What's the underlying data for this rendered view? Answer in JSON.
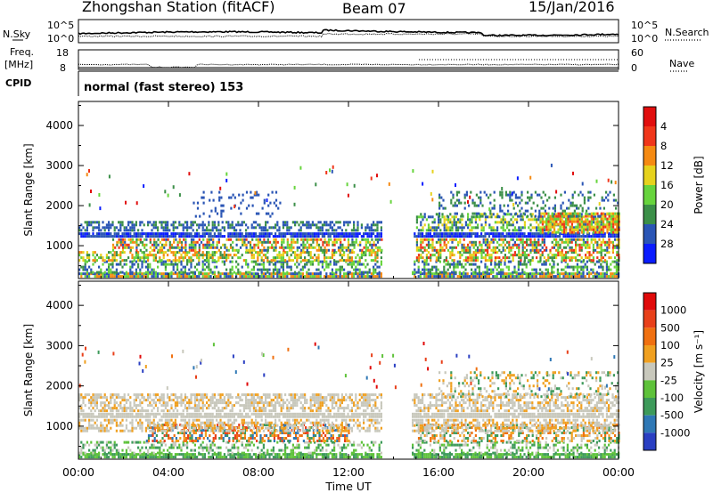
{
  "header": {
    "station": "Zhongshan Station (fitACF)",
    "beam": "Beam 07",
    "date": "15/Jan/2016",
    "mode": "normal (fast stereo) 153"
  },
  "left_labels": {
    "nsky": "N.Sky",
    "freq_top": "Freq.",
    "freq_unit": "[MHz]",
    "cpid": "CPID"
  },
  "right_labels": {
    "nsearch": "N.Search",
    "nave": "Nave"
  },
  "noise_axis": {
    "ticks_left": [
      "10^5",
      "10^0"
    ],
    "ticks_right": [
      "10^5",
      "10^0"
    ]
  },
  "freq_axis": {
    "ticks_left": [
      "18",
      "8"
    ],
    "ticks_right": [
      "60",
      "0"
    ]
  },
  "chart_data": [
    {
      "type": "heatmap",
      "panel": "power",
      "ylabel": "Slant Range [km]",
      "xlabel": "",
      "x_ticks": [
        "00:00",
        "04:00",
        "08:00",
        "12:00",
        "16:00",
        "20:00",
        "00:00"
      ],
      "y_ticks": [
        1000,
        2000,
        3000,
        4000
      ],
      "ylim": [
        180,
        4600
      ],
      "xlim_hours": [
        0,
        24
      ],
      "colorbar": {
        "label": "Power [dB]",
        "ticks": [
          "4",
          "8",
          "12",
          "16",
          "20",
          "24",
          "28"
        ],
        "colors": [
          "#0a1cff",
          "#2a55b5",
          "#3b8f48",
          "#67d43d",
          "#e6d21d",
          "#f58a12",
          "#f0361a",
          "#e10e0e"
        ]
      },
      "bands": [
        {
          "r": [
            200,
            300
          ],
          "t": [
            0,
            24
          ],
          "d": 0.9,
          "c": [
            1,
            3,
            5
          ]
        },
        {
          "r": [
            300,
            600
          ],
          "t": [
            0,
            24
          ],
          "d": 0.45,
          "c": [
            1,
            2,
            3
          ]
        },
        {
          "r": [
            600,
            850
          ],
          "t": [
            0,
            14
          ],
          "d": 0.55,
          "c": [
            2,
            3,
            4,
            5
          ]
        },
        {
          "r": [
            600,
            850
          ],
          "t": [
            15,
            24
          ],
          "d": 0.55,
          "c": [
            2,
            3,
            4,
            5,
            6
          ]
        },
        {
          "r": [
            850,
            1150
          ],
          "t": [
            1.5,
            14
          ],
          "d": 0.6,
          "c": [
            1,
            2,
            3,
            4,
            5,
            6
          ]
        },
        {
          "r": [
            850,
            1150
          ],
          "t": [
            15,
            24
          ],
          "d": 0.6,
          "c": [
            1,
            2,
            3,
            4,
            5,
            6
          ]
        },
        {
          "r": [
            1200,
            1300
          ],
          "t": [
            0,
            24
          ],
          "d": 0.9,
          "c": [
            0,
            1
          ]
        },
        {
          "r": [
            1350,
            1600
          ],
          "t": [
            0,
            14
          ],
          "d": 0.55,
          "c": [
            1,
            1,
            2
          ]
        },
        {
          "r": [
            1350,
            1750
          ],
          "t": [
            15,
            24
          ],
          "d": 0.55,
          "c": [
            1,
            2,
            3,
            4
          ]
        },
        {
          "r": [
            1300,
            1800
          ],
          "t": [
            20.5,
            24
          ],
          "d": 0.75,
          "c": [
            3,
            4,
            5,
            6
          ]
        },
        {
          "r": [
            1700,
            2300
          ],
          "t": [
            16,
            24
          ],
          "d": 0.22,
          "c": [
            1,
            2
          ]
        },
        {
          "r": [
            1700,
            2300
          ],
          "t": [
            5,
            9
          ],
          "d": 0.15,
          "c": [
            1
          ]
        }
      ]
    },
    {
      "type": "heatmap",
      "panel": "velocity",
      "ylabel": "Slant Range [km]",
      "xlabel": "Time UT",
      "x_ticks": [
        "00:00",
        "04:00",
        "08:00",
        "12:00",
        "16:00",
        "20:00",
        "00:00"
      ],
      "y_ticks": [
        1000,
        2000,
        3000,
        4000
      ],
      "ylim": [
        180,
        4600
      ],
      "xlim_hours": [
        0,
        24
      ],
      "colorbar": {
        "label": "Velocity [m s⁻¹]",
        "ticks": [
          "1000",
          "500",
          "100",
          "25",
          "-25",
          "-100",
          "-500",
          "-1000"
        ],
        "colors": [
          "#2a3fc2",
          "#2f78b5",
          "#3d9a5a",
          "#5ec23a",
          "#c8c8bc",
          "#f0a020",
          "#f07010",
          "#e8401a",
          "#e00a0a"
        ]
      },
      "bands": [
        {
          "r": [
            200,
            300
          ],
          "t": [
            0,
            24
          ],
          "d": 0.85,
          "c": [
            2,
            3
          ]
        },
        {
          "r": [
            300,
            600
          ],
          "t": [
            0,
            24
          ],
          "d": 0.4,
          "c": [
            2,
            3,
            4
          ]
        },
        {
          "r": [
            600,
            1000
          ],
          "t": [
            3,
            12
          ],
          "d": 0.55,
          "c": [
            5,
            6,
            7,
            1,
            2
          ]
        },
        {
          "r": [
            600,
            1000
          ],
          "t": [
            15,
            24
          ],
          "d": 0.45,
          "c": [
            4,
            5,
            6,
            2
          ]
        },
        {
          "r": [
            850,
            1150
          ],
          "t": [
            0,
            24
          ],
          "d": 0.55,
          "c": [
            4,
            4,
            5
          ]
        },
        {
          "r": [
            1200,
            1300
          ],
          "t": [
            0,
            24
          ],
          "d": 0.9,
          "c": [
            4
          ]
        },
        {
          "r": [
            1350,
            1750
          ],
          "t": [
            0,
            24
          ],
          "d": 0.6,
          "c": [
            4,
            4,
            4,
            5
          ]
        },
        {
          "r": [
            1700,
            2300
          ],
          "t": [
            16,
            24
          ],
          "d": 0.25,
          "c": [
            4,
            5,
            2
          ]
        }
      ]
    }
  ]
}
